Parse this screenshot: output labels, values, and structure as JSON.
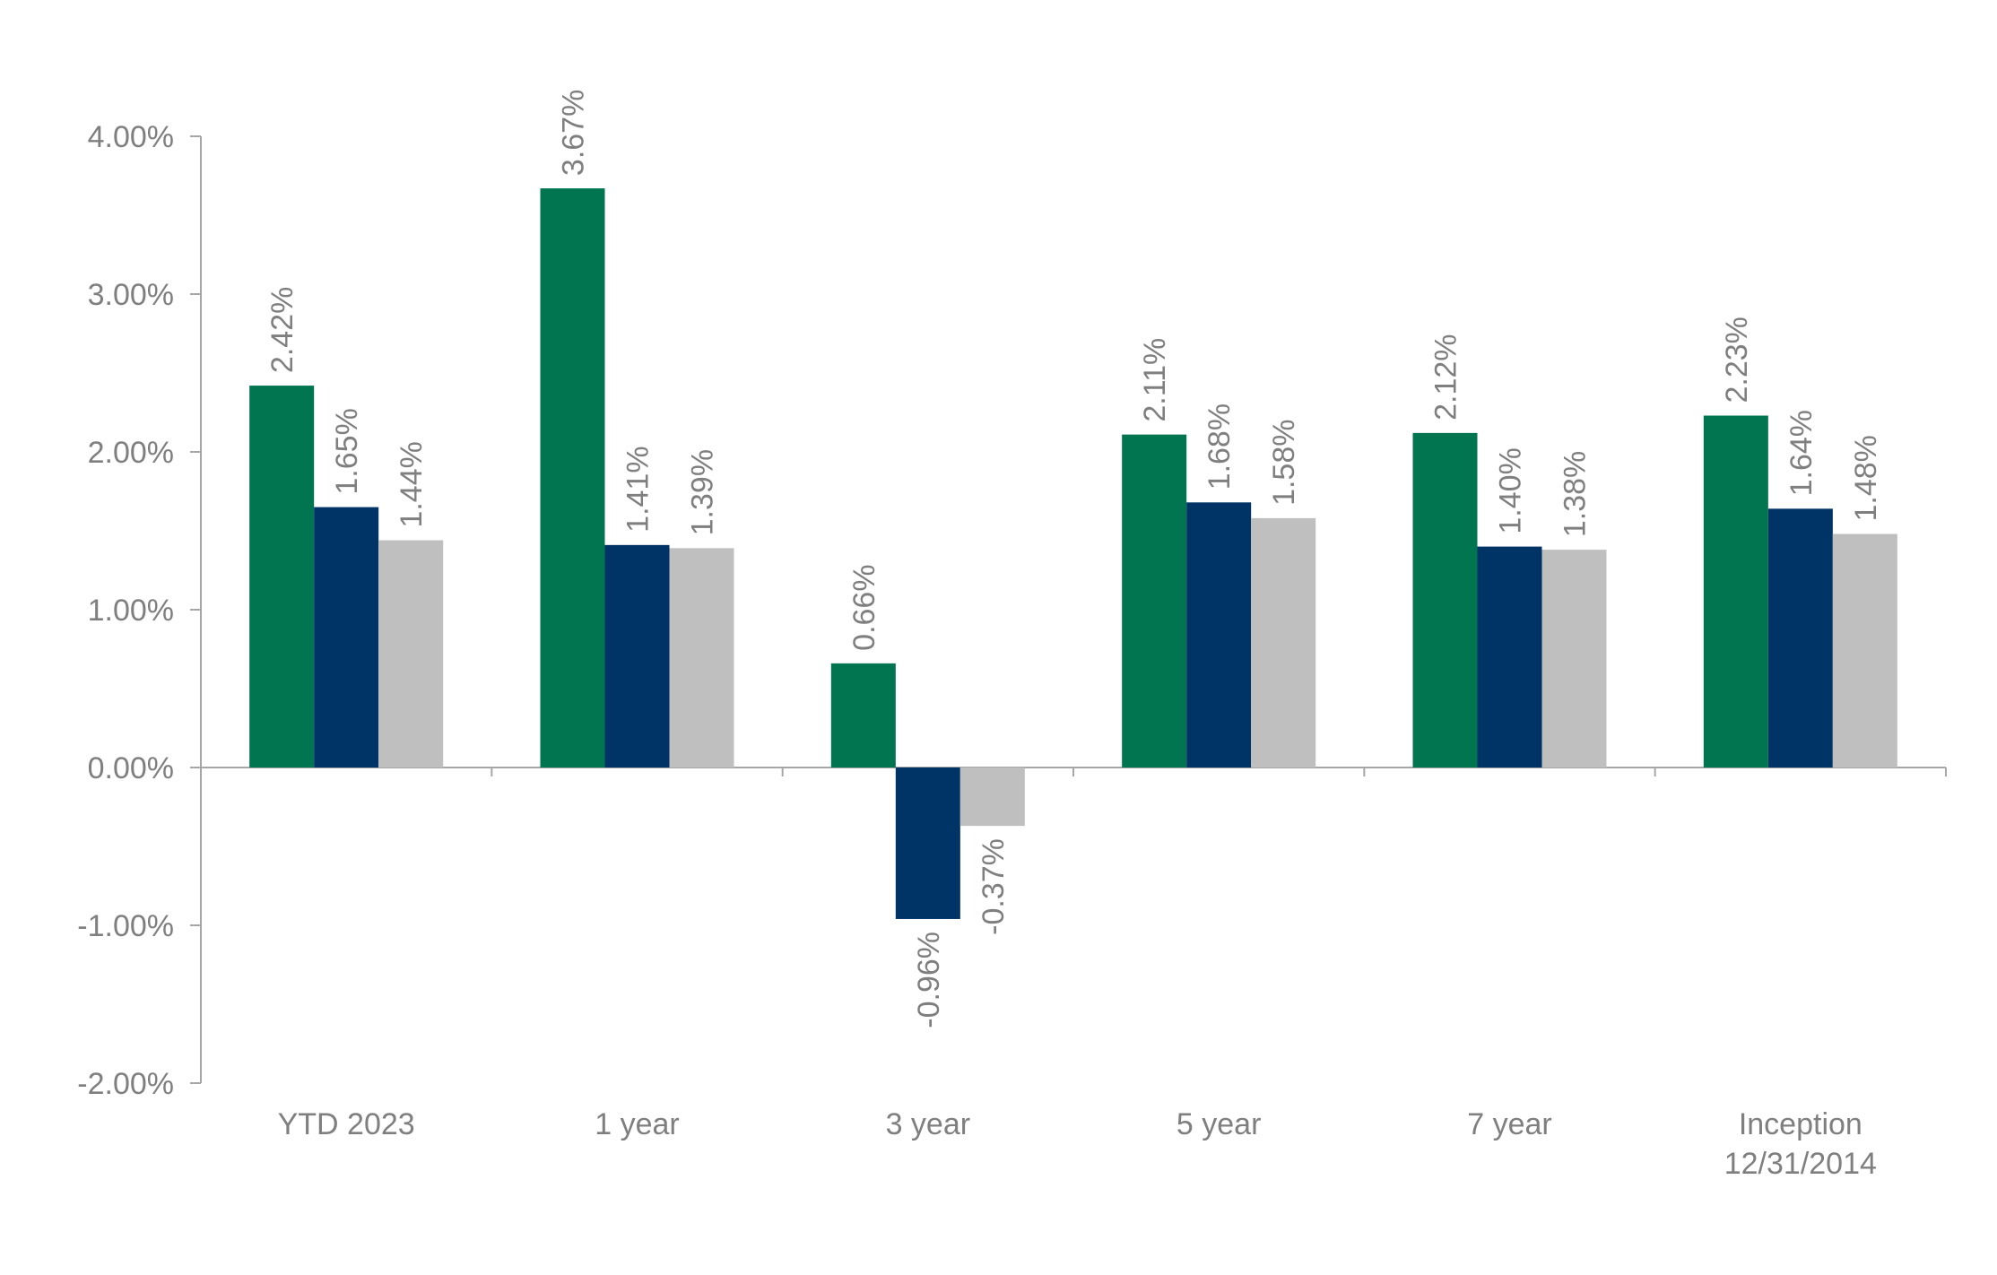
{
  "chart_data": {
    "type": "bar",
    "title": "",
    "xlabel": "",
    "ylabel": "",
    "categories": [
      [
        "YTD 2023"
      ],
      [
        "1 year"
      ],
      [
        "3 year"
      ],
      [
        "5 year"
      ],
      [
        "7 year"
      ],
      [
        "Inception",
        "12/31/2014"
      ]
    ],
    "series": [
      {
        "color": "#007550",
        "values": [
          2.42,
          3.67,
          0.66,
          2.11,
          2.12,
          2.23
        ]
      },
      {
        "color": "#003366",
        "values": [
          1.65,
          1.41,
          -0.96,
          1.68,
          1.4,
          1.64
        ]
      },
      {
        "color": "#bfbfbf",
        "values": [
          1.44,
          1.39,
          -0.37,
          1.58,
          1.38,
          1.48
        ]
      }
    ],
    "ylim": [
      -2,
      4
    ],
    "yticks": [
      4,
      3,
      2,
      1,
      0,
      -1,
      -2
    ],
    "ytick_labels": [
      "4.00%",
      "3.00%",
      "2.00%",
      "1.00%",
      "0.00%",
      "-1.00%",
      "-2.00%"
    ],
    "data_labels": [
      [
        "2.42%",
        "3.67%",
        "0.66%",
        "2.11%",
        "2.12%",
        "2.23%"
      ],
      [
        "1.65%",
        "1.41%",
        "-0.96%",
        "1.68%",
        "1.40%",
        "1.64%"
      ],
      [
        "1.44%",
        "1.39%",
        "-0.37%",
        "1.58%",
        "1.38%",
        "1.48%"
      ]
    ],
    "grid": false,
    "legend": "none",
    "axis_color": "#a6a6a6"
  }
}
